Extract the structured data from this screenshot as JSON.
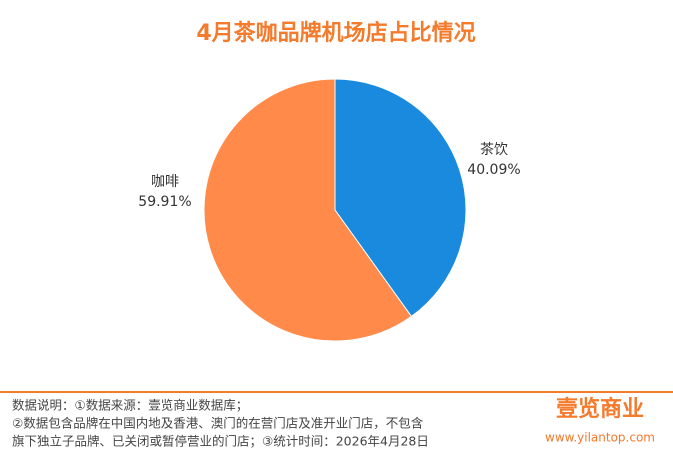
{
  "chart_data": {
    "type": "pie",
    "title": "4月茶咖品牌机场店占比情况",
    "categories": [
      "茶饮",
      "咖啡"
    ],
    "values": [
      40.09,
      59.91
    ],
    "value_labels": [
      "40.09%",
      "59.91%"
    ],
    "colors": [
      "#1a8ade",
      "#ff8a4a"
    ]
  },
  "footer": {
    "notes": [
      "数据说明：①数据来源：壹览商业数据库；",
      "②数据包含品牌在中国内地及香港、澳门的在营门店及准开业门店，不包含",
      "旗下独立子品牌、已关闭或暂停营业的门店；③统计时间：2026年4月28日"
    ],
    "logo": "壹览商业",
    "url": "www.yilantop.com"
  }
}
